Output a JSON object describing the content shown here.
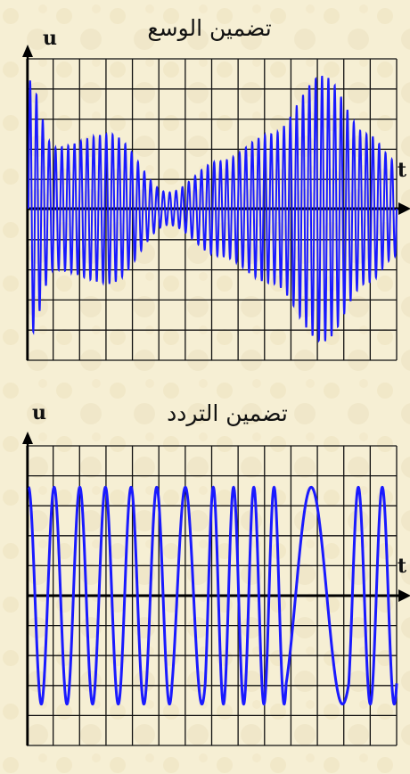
{
  "chart_data": [
    {
      "type": "line",
      "title": "تضمين الوسع",
      "ylabel": "u",
      "xlabel": "t",
      "grid": true,
      "series": [
        {
          "color": "#1a1aff",
          "carrier_cycles": 58,
          "envelope": [
            [
              0,
              0.95
            ],
            [
              0.07,
              0.45
            ],
            [
              0.22,
              0.55
            ],
            [
              0.38,
              0.12
            ],
            [
              0.52,
              0.35
            ],
            [
              0.66,
              0.55
            ],
            [
              0.8,
              0.98
            ],
            [
              0.92,
              0.55
            ],
            [
              1.0,
              0.35
            ]
          ]
        }
      ]
    },
    {
      "type": "line",
      "title": "تضمين التردد",
      "ylabel": "u",
      "xlabel": "t",
      "grid": true,
      "series": [
        {
          "color": "#1a1aff",
          "frequency_pattern": "high-low-high-low-high",
          "amplitude": 0.95
        }
      ]
    }
  ]
}
